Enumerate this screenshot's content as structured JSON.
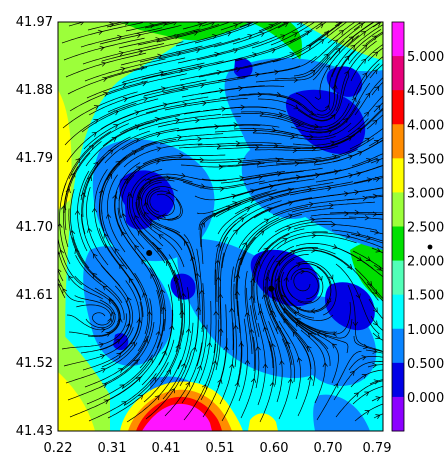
{
  "chart_data": {
    "type": "heatmap",
    "title": "",
    "xlabel": "",
    "ylabel": "",
    "overlay": "streamlines",
    "grid": false,
    "legend": "right colorbar",
    "xlim": [
      0.22,
      0.79
    ],
    "ylim": [
      41.43,
      41.97
    ],
    "x_ticks": [
      "0.22",
      "0.31",
      "0.41",
      "0.51",
      "0.60",
      "0.70",
      "0.79"
    ],
    "y_ticks": [
      "41.97",
      "41.88",
      "41.79",
      "41.70",
      "41.61",
      "41.52",
      "41.43"
    ],
    "colorbar": {
      "labels": [
        "5.000",
        "4.500",
        "4.000",
        "3.500",
        "3.000",
        "2.500",
        "2.000",
        "1.500",
        "1.000",
        "0.500",
        "0.000"
      ],
      "colors": [
        "#ff14ff",
        "#e6007a",
        "#ff0000",
        "#ff8c00",
        "#ffff00",
        "#9cff3a",
        "#00e000",
        "#52ffb8",
        "#00ffff",
        "#0a84ff",
        "#0000e6",
        "#8c00ff"
      ]
    },
    "points": [
      {
        "x": 0.38,
        "y": 41.665
      },
      {
        "x": 0.594,
        "y": 41.618
      }
    ]
  }
}
